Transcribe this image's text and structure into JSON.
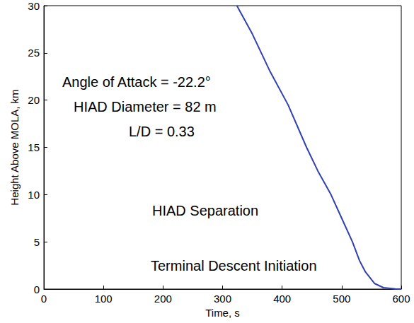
{
  "chart_data": {
    "type": "line",
    "x_label": "Time, s",
    "y_label": "Height Above MOLA, km",
    "annotations": [
      "Angle of Attack = -22.2°",
      "HIAD Diameter = 82 m",
      "L/D = 0.33",
      "HIAD Separation",
      "Terminal Descent Initiation"
    ],
    "x": [
      324,
      350,
      380,
      410,
      441,
      460,
      482,
      500,
      518,
      530,
      540,
      555,
      570,
      590,
      600
    ],
    "values": [
      30,
      27,
      23,
      19.5,
      15,
      12.5,
      10,
      7.5,
      5,
      3,
      1.8,
      0.6,
      0.15,
      0.02,
      0
    ],
    "color": "#3040b0",
    "line_style": "solid",
    "xlim": [
      0,
      600
    ],
    "xticks": [
      0,
      100,
      200,
      300,
      400,
      500,
      600
    ],
    "ylim": [
      0,
      30
    ],
    "yticks": [
      0,
      5,
      10,
      15,
      20,
      25,
      30
    ],
    "grid": false
  }
}
